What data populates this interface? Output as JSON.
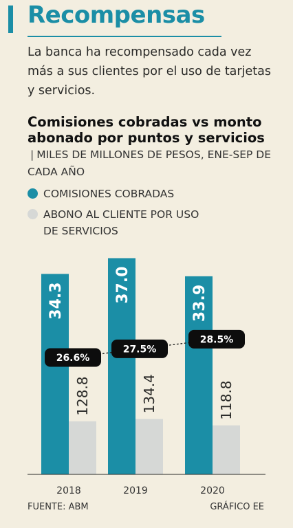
{
  "header": {
    "title": "Recompensas",
    "intro": "La banca ha  recompensado cada vez más a sus clientes por el uso de tarjetas y servicios.",
    "chart_title": "Comisiones cobradas vs monto abonado por puntos y servicios",
    "units": "MILES DE MILLONES DE PESOS, ENE-SEP DE CADA AÑO"
  },
  "legend": {
    "items": [
      {
        "label": "COMISIONES COBRADAS",
        "color": "#1b8ea6"
      },
      {
        "label": "ABONO AL CLIENTE POR USO DE SERVICIOS",
        "color": "#d6d8d6"
      }
    ]
  },
  "chart_data": {
    "type": "bar",
    "categories": [
      "2018",
      "2019",
      "2020"
    ],
    "series": [
      {
        "name": "COMISIONES COBRADAS",
        "values": [
          34.3,
          37.0,
          33.9
        ],
        "labels": [
          "34.3",
          "37.0",
          "33.9"
        ],
        "color": "#1b8ea6"
      },
      {
        "name": "ABONO AL CLIENTE POR USO DE SERVICIOS",
        "values": [
          128.8,
          134.4,
          118.8
        ],
        "labels": [
          "128.8",
          "134.4",
          "118.8"
        ],
        "color": "#d6d8d6"
      }
    ],
    "ratio_line": {
      "values": [
        26.6,
        27.5,
        28.5
      ],
      "labels": [
        "26.6%",
        "27.5%",
        "28.5%"
      ]
    },
    "grid": false
  },
  "footer": {
    "source": "FUENTE: ABM",
    "credit": "GRÁFICO EE"
  }
}
